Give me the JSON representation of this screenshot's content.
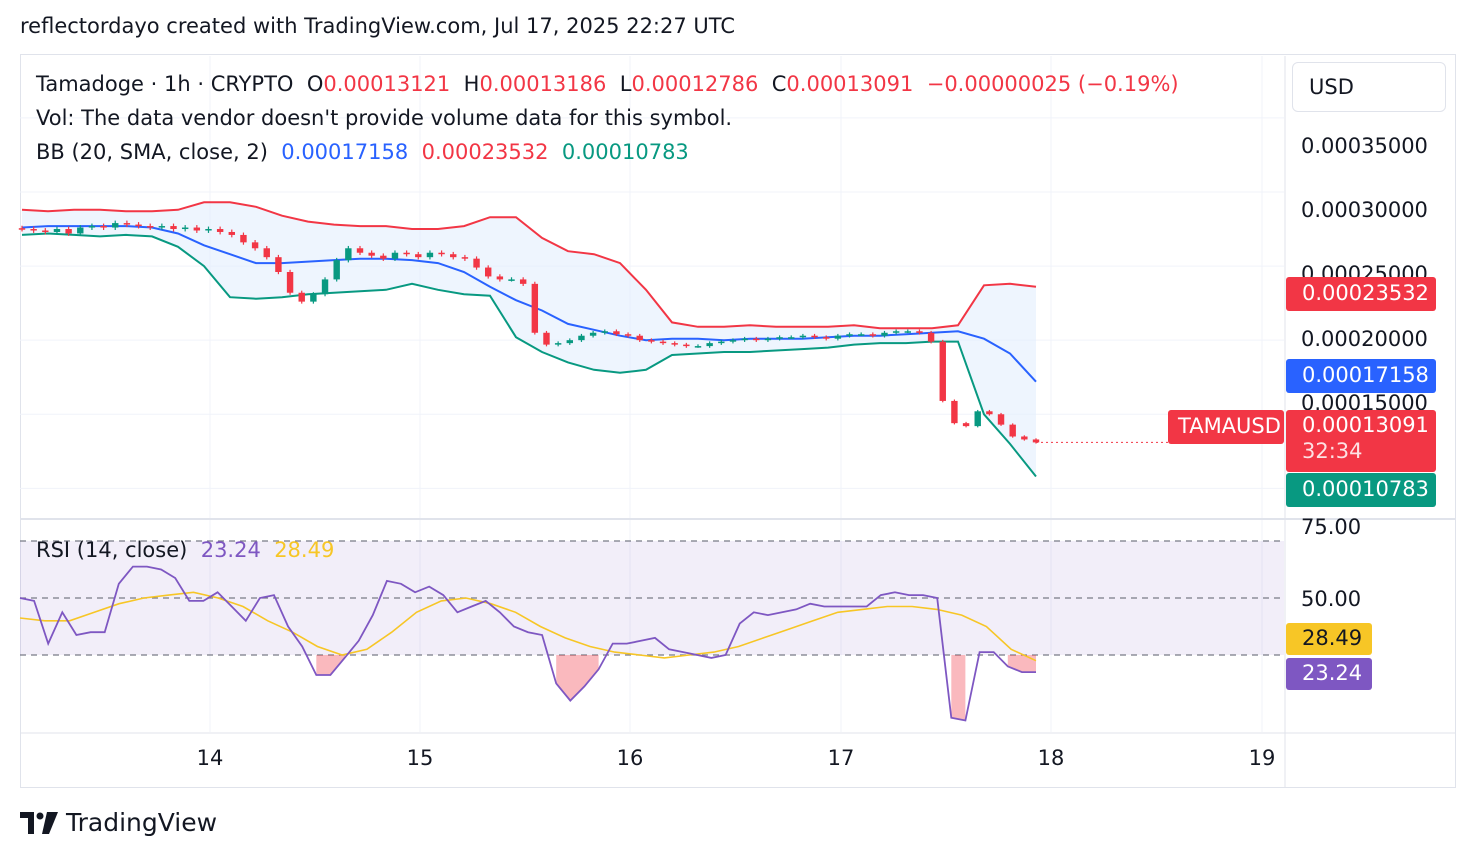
{
  "header": {
    "text": "reflectordayo created with TradingView.com, Jul 17, 2025 22:27 UTC"
  },
  "legend": {
    "symbol": "Tamadoge · 1h · CRYPTO",
    "o_label": "O",
    "o_value": "0.00013121",
    "h_label": "H",
    "h_value": "0.00013186",
    "l_label": "L",
    "l_value": "0.00012786",
    "c_label": "C",
    "c_value": "0.00013091",
    "change": "−0.00000025 (−0.19%)",
    "vol_text": "Vol: The data vendor doesn't provide volume data for this symbol.",
    "bb_label": "BB (20, SMA, close, 2)",
    "bb_basis": "0.00017158",
    "bb_upper": "0.00023532",
    "bb_lower": "0.00010783",
    "rsi_label": "RSI (14, close)",
    "rsi_value": "23.24",
    "rsi_ma": "28.49"
  },
  "price_axis": {
    "currency": "USD",
    "ticks": [
      "0.00035000",
      "0.00030000",
      "0.00025000",
      "0.00020000",
      "0.00015000"
    ],
    "tags": {
      "upper": "0.00023532",
      "basis": "0.00017158",
      "last": "0.00013091",
      "countdown": "32:34",
      "lower": "0.00010783",
      "symbol": "TAMAUSD"
    }
  },
  "rsi_axis": {
    "ticks": [
      "75.00",
      "50.00"
    ],
    "tags": {
      "ma": "28.49",
      "rsi": "23.24"
    }
  },
  "time_axis": {
    "ticks": [
      "14",
      "15",
      "16",
      "17",
      "18",
      "19"
    ]
  },
  "footer": {
    "brand": "TradingView"
  },
  "colors": {
    "up": "#089981",
    "down": "#f23645",
    "bb_basis": "#2962ff",
    "bb_upper": "#f23645",
    "bb_lower": "#089981",
    "rsi": "#7e57c2",
    "rsi_ma": "#f7c626",
    "bb_fill": "#e3effd"
  },
  "chart_data": [
    {
      "type": "candlestick",
      "title": "Tamadoge · 1h · CRYPTO",
      "ylim": [
        8e-05,
        0.000385
      ],
      "x_ticks": [
        "14",
        "15",
        "16",
        "17",
        "18",
        "19"
      ],
      "close_series": [
        0.000275,
        0.000274,
        0.000273,
        0.000275,
        0.000272,
        0.000276,
        0.000277,
        0.000276,
        0.000279,
        0.000278,
        0.000277,
        0.000276,
        0.000277,
        0.000275,
        0.000276,
        0.000274,
        0.000275,
        0.000273,
        0.000271,
        0.000266,
        0.000262,
        0.000256,
        0.000246,
        0.000232,
        0.000226,
        0.000231,
        0.000241,
        0.000254,
        0.000262,
        0.000259,
        0.000257,
        0.000255,
        0.000259,
        0.000258,
        0.000256,
        0.000259,
        0.000258,
        0.000256,
        0.000255,
        0.000249,
        0.000243,
        0.000241,
        0.000241,
        0.000238,
        0.000205,
        0.000197,
        0.000198,
        0.0002,
        0.000203,
        0.000205,
        0.000206,
        0.000204,
        0.000203,
        0.0002,
        0.000199,
        0.000198,
        0.000197,
        0.000196,
        0.000196,
        0.000198,
        0.000199,
        0.0002,
        0.000201,
        0.0002,
        0.000201,
        0.000202,
        0.000202,
        0.000203,
        0.000202,
        0.000201,
        0.000203,
        0.000204,
        0.000204,
        0.000203,
        0.000205,
        0.000206,
        0.000206,
        0.000205,
        0.000199,
        0.000159,
        0.000144,
        0.000142,
        0.000152,
        0.00015,
        0.000143,
        0.000135,
        0.000133,
        0.000131
      ],
      "bb_upper": [
        0.000288,
        0.000287,
        0.000288,
        0.000288,
        0.000287,
        0.000287,
        0.000288,
        0.000293,
        0.000293,
        0.00029,
        0.000284,
        0.00028,
        0.000278,
        0.000277,
        0.000277,
        0.000275,
        0.000275,
        0.000277,
        0.000283,
        0.000283,
        0.000269,
        0.00026,
        0.000258,
        0.000252,
        0.000234,
        0.000212,
        0.000209,
        0.000209,
        0.00021,
        0.000209,
        0.000209,
        0.000209,
        0.00021,
        0.000208,
        0.000208,
        0.000208,
        0.00021,
        0.000237,
        0.000238,
        0.000236
      ],
      "bb_basis": [
        0.000276,
        0.000277,
        0.000277,
        0.000277,
        0.000277,
        0.000276,
        0.000272,
        0.000264,
        0.000258,
        0.000252,
        0.000252,
        0.000253,
        0.000254,
        0.000255,
        0.000255,
        0.000254,
        0.000252,
        0.000246,
        0.000236,
        0.000227,
        0.00022,
        0.000211,
        0.000207,
        0.000203,
        0.0002,
        0.000201,
        0.000201,
        0.0002,
        0.000201,
        0.000201,
        0.000201,
        0.000202,
        0.000203,
        0.000203,
        0.000204,
        0.000205,
        0.000206,
        0.000201,
        0.000191,
        0.000172
      ],
      "bb_lower": [
        0.000271,
        0.000272,
        0.000271,
        0.00027,
        0.000271,
        0.00027,
        0.000263,
        0.00025,
        0.000229,
        0.000228,
        0.000229,
        0.000231,
        0.000232,
        0.000233,
        0.000234,
        0.000238,
        0.000234,
        0.000231,
        0.00023,
        0.000202,
        0.000192,
        0.000185,
        0.00018,
        0.000178,
        0.00018,
        0.00019,
        0.000191,
        0.000192,
        0.000192,
        0.000193,
        0.000194,
        0.000195,
        0.000197,
        0.000198,
        0.000198,
        0.000199,
        0.000199,
        0.00015,
        0.00013,
        0.000108
      ]
    },
    {
      "type": "line",
      "title": "RSI (14, close)",
      "ylim": [
        0,
        100
      ],
      "bands": [
        70,
        50,
        30
      ],
      "series": [
        {
          "name": "RSI",
          "values": [
            50,
            49,
            34,
            45,
            37,
            38,
            38,
            55,
            61,
            61,
            60,
            57,
            49,
            49,
            52,
            47,
            42,
            50,
            51,
            40,
            33,
            23,
            23,
            29,
            35,
            44,
            56,
            55,
            52,
            54,
            51,
            45,
            47,
            49,
            45,
            40,
            38,
            37,
            20,
            14,
            19,
            25,
            34,
            34,
            35,
            36,
            32,
            31,
            30,
            29,
            30,
            41,
            45,
            44,
            45,
            46,
            48,
            47,
            47,
            47,
            47,
            51,
            52,
            51,
            51,
            50,
            8,
            7,
            31,
            31,
            26,
            24,
            24
          ]
        },
        {
          "name": "MA",
          "values": [
            43,
            42,
            42,
            45,
            48,
            50,
            51,
            52,
            50,
            47,
            42,
            38,
            33,
            30,
            32,
            38,
            45,
            49,
            50,
            48,
            45,
            40,
            36,
            33,
            31,
            30,
            29,
            30,
            31,
            33,
            36,
            39,
            42,
            45,
            46,
            47,
            47,
            46,
            44,
            40,
            32,
            28
          ]
        }
      ]
    }
  ]
}
